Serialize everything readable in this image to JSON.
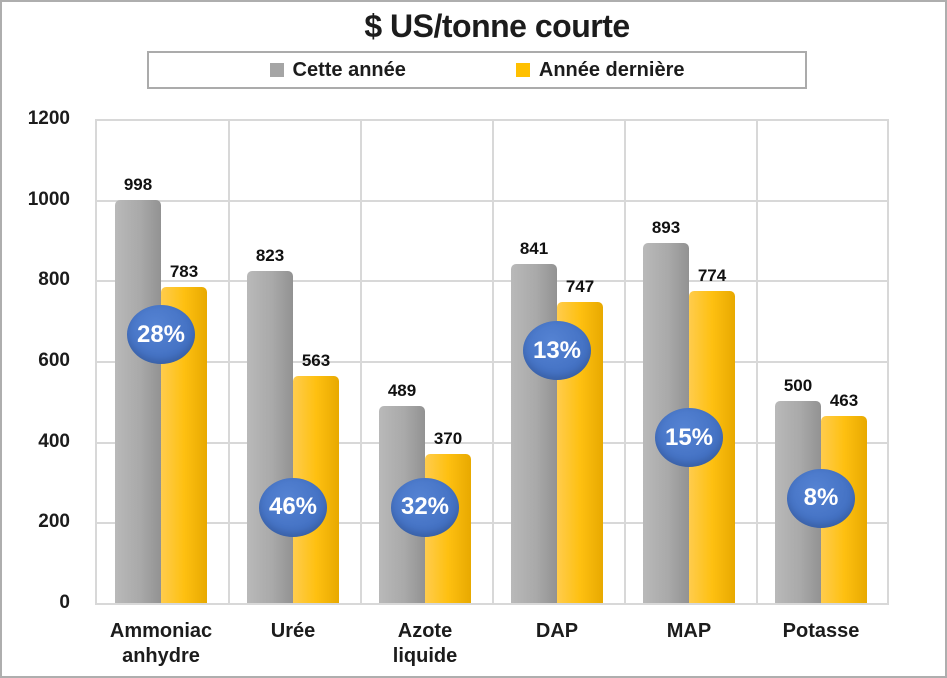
{
  "chart_data": {
    "type": "bar",
    "title": "$ US/tonne courte",
    "categories": [
      "Ammoniac anhydre",
      "Urée",
      "Azote liquide",
      "DAP",
      "MAP",
      "Potasse"
    ],
    "series": [
      {
        "name": "Cette année",
        "color": "#A5A5A5",
        "values": [
          998,
          823,
          489,
          841,
          893,
          500
        ]
      },
      {
        "name": "Année dernière",
        "color": "#FFC000",
        "values": [
          783,
          563,
          370,
          747,
          774,
          463
        ]
      }
    ],
    "pct_badges": [
      {
        "label": "28%",
        "y_value": 665
      },
      {
        "label": "46%",
        "y_value": 238
      },
      {
        "label": "32%",
        "y_value": 238
      },
      {
        "label": "13%",
        "y_value": 625
      },
      {
        "label": "15%",
        "y_value": 410
      },
      {
        "label": "8%",
        "y_value": 260
      }
    ],
    "yticks": [
      0,
      200,
      400,
      600,
      800,
      1000,
      1200
    ],
    "ylim": [
      0,
      1200
    ],
    "xlabel": "",
    "ylabel": "",
    "grid": true,
    "legend_position": "top",
    "badge_color": "#4472C4",
    "gridline_color": "#D8D8D8"
  },
  "legend": {
    "items": [
      {
        "label": "Cette année",
        "color": "#A5A5A5"
      },
      {
        "label": "Année dernière",
        "color": "#FFC000"
      }
    ]
  }
}
